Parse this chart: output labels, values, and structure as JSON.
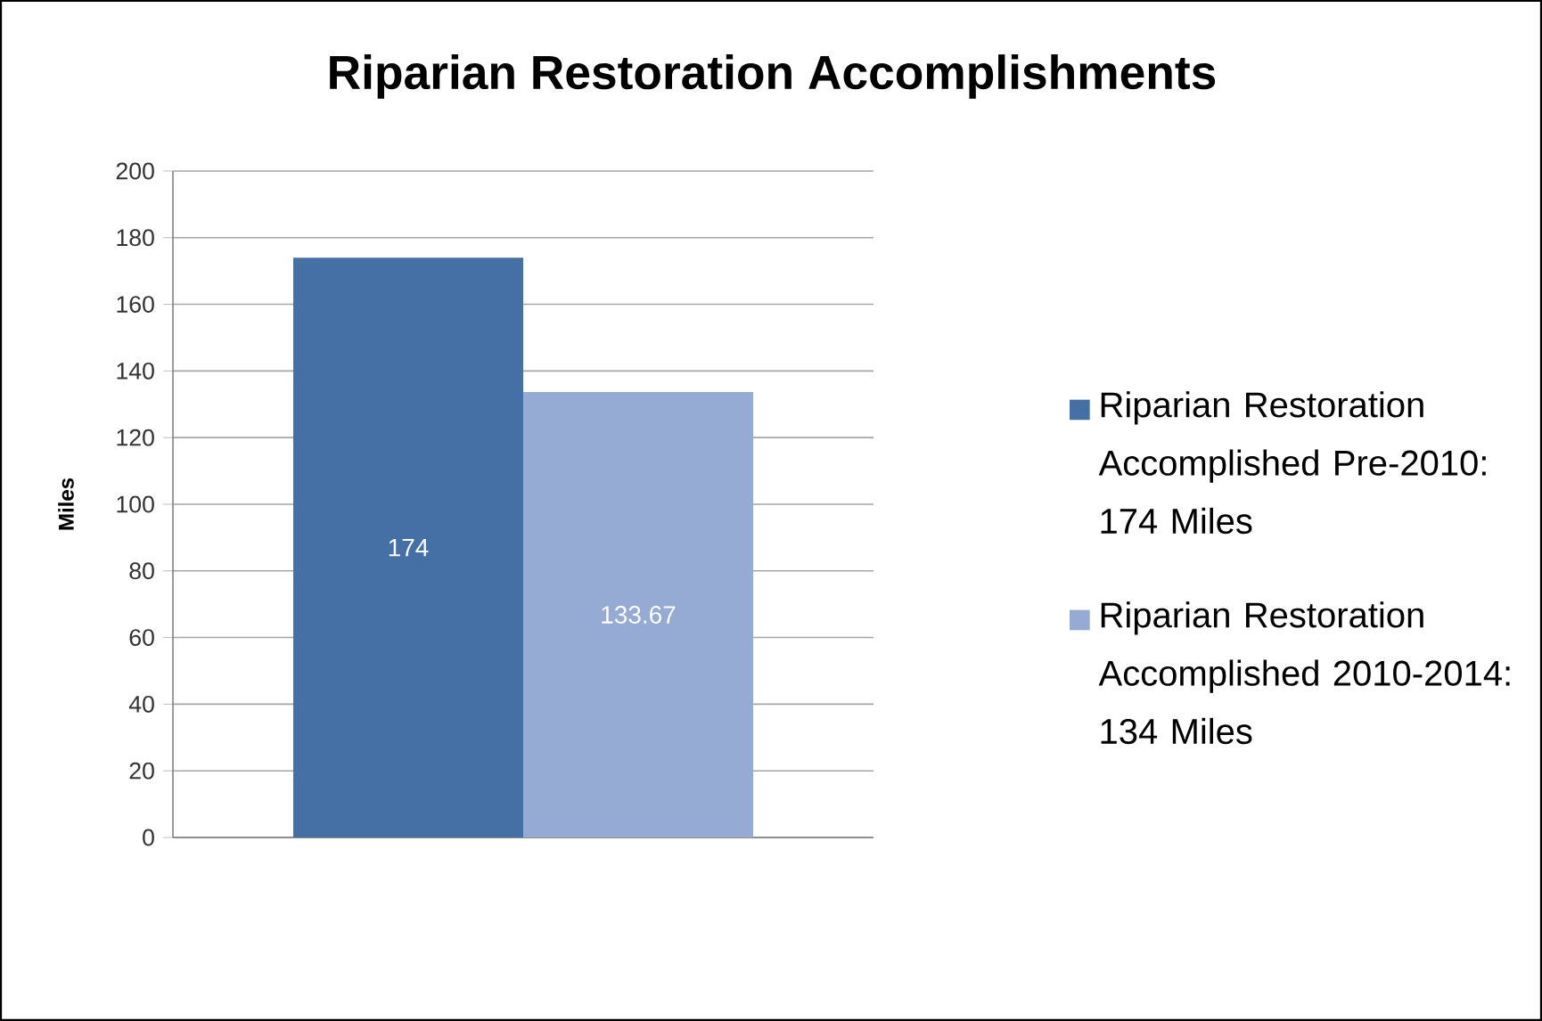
{
  "chart_data": {
    "type": "bar",
    "title": "Riparian Restoration Accomplishments",
    "ylabel": "Miles",
    "categories": [
      null
    ],
    "series": [
      {
        "name": "Riparian Restoration Accomplished Pre-2010: 174 Miles",
        "color": "#4470a6",
        "values": [
          174
        ]
      },
      {
        "name": "Riparian Restoration Accomplished 2010-2014: 134 Miles",
        "color": "#95abd3",
        "values": [
          133.67
        ]
      }
    ],
    "ylim": [
      0,
      200
    ],
    "yticks": [
      0,
      20,
      40,
      60,
      80,
      100,
      120,
      140,
      160,
      180,
      200
    ],
    "grid": "y",
    "legend": "right",
    "data_labels": true
  }
}
